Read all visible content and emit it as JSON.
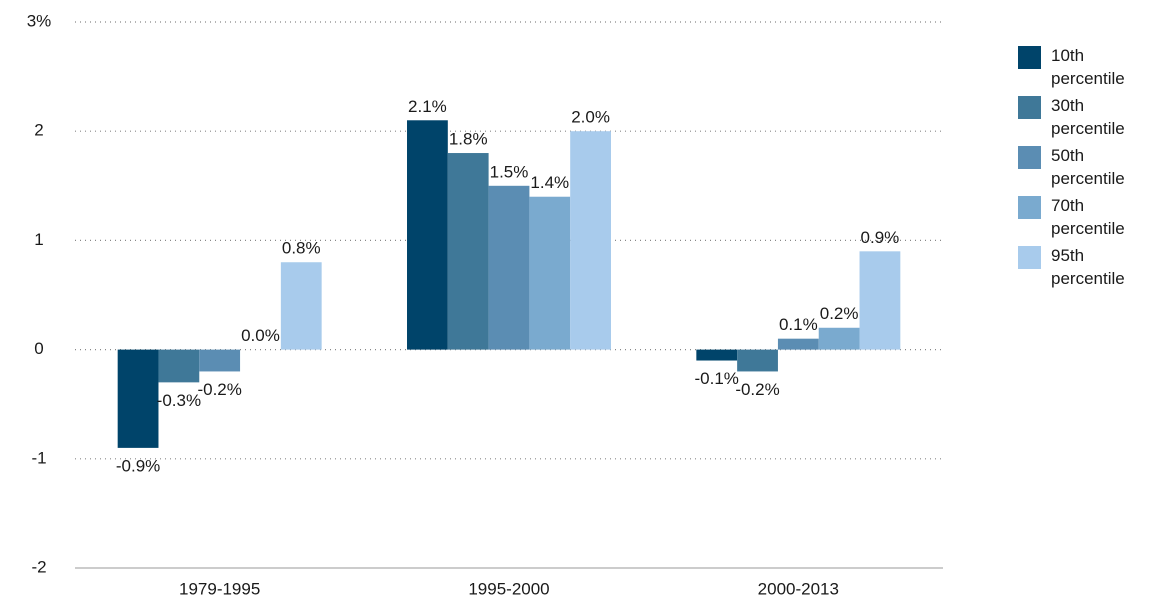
{
  "chart_data": {
    "type": "bar",
    "categories": [
      "1979-1995",
      "1995-2000",
      "2000-2013"
    ],
    "series": [
      {
        "name": "10th percentile",
        "color": "#00446a",
        "values": [
          -0.9,
          2.1,
          -0.1
        ],
        "value_labels": [
          "-0.9%",
          "2.1%",
          "-0.1%"
        ]
      },
      {
        "name": "30th percentile",
        "color": "#3f7898",
        "values": [
          -0.3,
          1.8,
          -0.2
        ],
        "value_labels": [
          "-0.3%",
          "1.8%",
          "-0.2%"
        ]
      },
      {
        "name": "50th percentile",
        "color": "#5b8db3",
        "values": [
          -0.2,
          1.5,
          0.1
        ],
        "value_labels": [
          "-0.2%",
          "1.5%",
          "0.1%"
        ]
      },
      {
        "name": "70th percentile",
        "color": "#7aaacf",
        "values": [
          0.0,
          1.4,
          0.2
        ],
        "value_labels": [
          "0.0%",
          "1.4%",
          "0.2%"
        ]
      },
      {
        "name": "95th percentile",
        "color": "#a8cbec",
        "values": [
          0.8,
          2.0,
          0.9
        ],
        "value_labels": [
          "0.8%",
          "2.0%",
          "0.9%"
        ]
      }
    ],
    "ylim": [
      -2,
      3
    ],
    "yticks": [
      {
        "value": 3,
        "label": "3%"
      },
      2,
      1,
      0,
      -1,
      -2
    ],
    "grid": true,
    "legend": "right"
  }
}
